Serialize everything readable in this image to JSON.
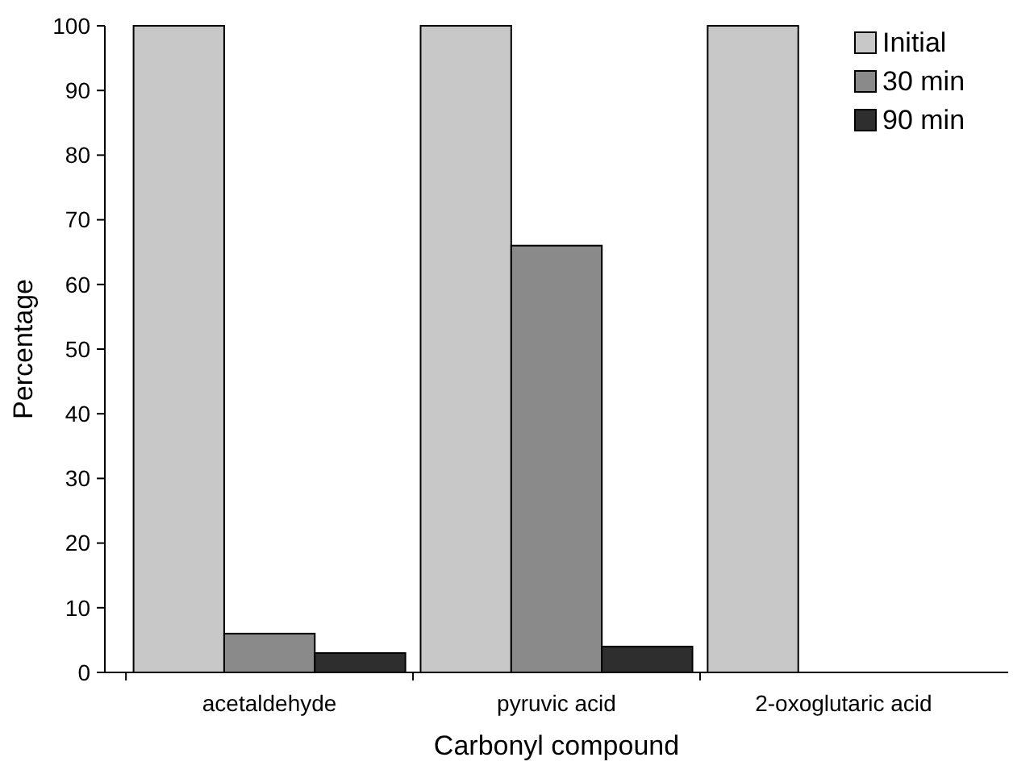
{
  "chart_data": {
    "type": "bar",
    "xlabel": "Carbonyl compound",
    "ylabel": "Percentage",
    "categories": [
      "acetaldehyde",
      "pyruvic acid",
      "2-oxoglutaric acid"
    ],
    "series": [
      {
        "name": "Initial",
        "color": "#c8c8c8",
        "values": [
          100,
          100,
          100
        ]
      },
      {
        "name": "30 min",
        "color": "#8a8a8a",
        "values": [
          6,
          66,
          0
        ]
      },
      {
        "name": "90 min",
        "color": "#2e2e2e",
        "values": [
          3,
          4,
          0
        ]
      }
    ],
    "ylim": [
      0,
      100
    ],
    "yticks": [
      0,
      10,
      20,
      30,
      40,
      50,
      60,
      70,
      80,
      90,
      100
    ],
    "grid": false,
    "legend": "top right"
  }
}
